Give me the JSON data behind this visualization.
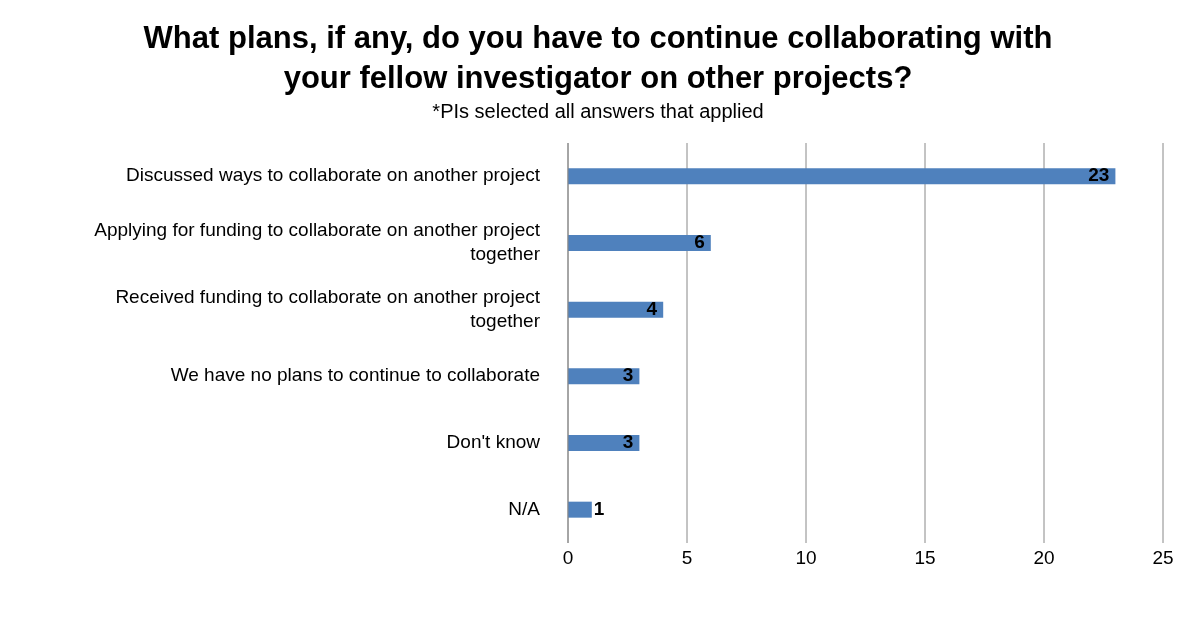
{
  "chart_data": {
    "type": "bar",
    "orientation": "horizontal",
    "title": "What plans, if any, do you have to continue collaborating with your fellow investigator on other projects?",
    "subtitle": "*PIs selected all answers that applied",
    "categories": [
      "Discussed ways to collaborate on another project",
      "Applying for funding to collaborate on another project together",
      "Received funding to collaborate on another project together",
      "We have no plans to continue to collaborate",
      "Don't know",
      "N/A"
    ],
    "values": [
      23,
      6,
      4,
      3,
      3,
      1
    ],
    "color": "#4f81bd",
    "xlim": [
      0,
      25
    ],
    "xticks": [
      0,
      5,
      10,
      15,
      20,
      25
    ],
    "grid": "x",
    "data_labels": true,
    "legend": false
  }
}
